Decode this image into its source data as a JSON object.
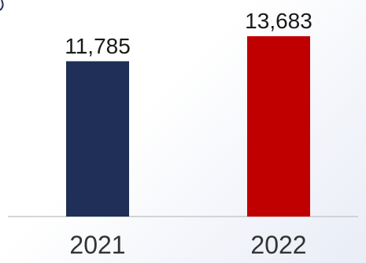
{
  "chart_data": {
    "type": "bar",
    "categories": [
      "2021",
      "2022"
    ],
    "values": [
      11785,
      13683
    ],
    "value_labels": [
      "11,785",
      "13,683"
    ],
    "colors": [
      "#1f2f57",
      "#c00000"
    ],
    "title": "",
    "xlabel": "",
    "ylabel": "",
    "ylim": [
      0,
      15000
    ],
    "grid": false,
    "legend": "none"
  },
  "colors": {
    "baseline": "#c8c8c8",
    "accent_mark": "#1f2f57"
  }
}
